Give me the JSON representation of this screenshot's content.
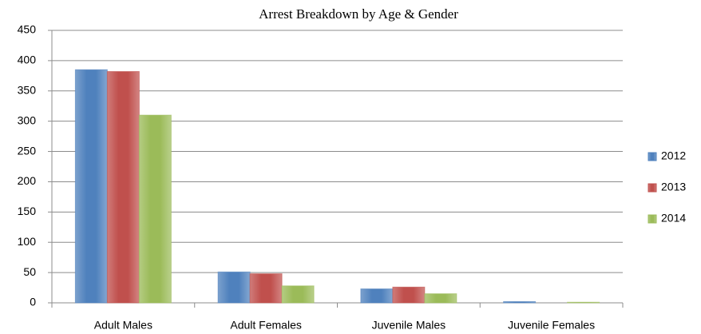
{
  "chart_data": {
    "type": "bar",
    "title": "Arrest Breakdown by Age & Gender",
    "categories": [
      "Adult Males",
      "Adult Females",
      "Juvenile Males",
      "Juvenile Females"
    ],
    "series": [
      {
        "name": "2012",
        "color": "#4f81bd",
        "values": [
          385,
          51,
          23,
          2
        ]
      },
      {
        "name": "2013",
        "color": "#c0504d",
        "values": [
          382,
          48,
          26,
          0
        ]
      },
      {
        "name": "2014",
        "color": "#9bbb59",
        "values": [
          310,
          28,
          15,
          1
        ]
      }
    ],
    "ylim": [
      0,
      450
    ],
    "yticks": [
      0,
      50,
      100,
      150,
      200,
      250,
      300,
      350,
      400,
      450
    ],
    "grid": true,
    "legend": "right"
  }
}
